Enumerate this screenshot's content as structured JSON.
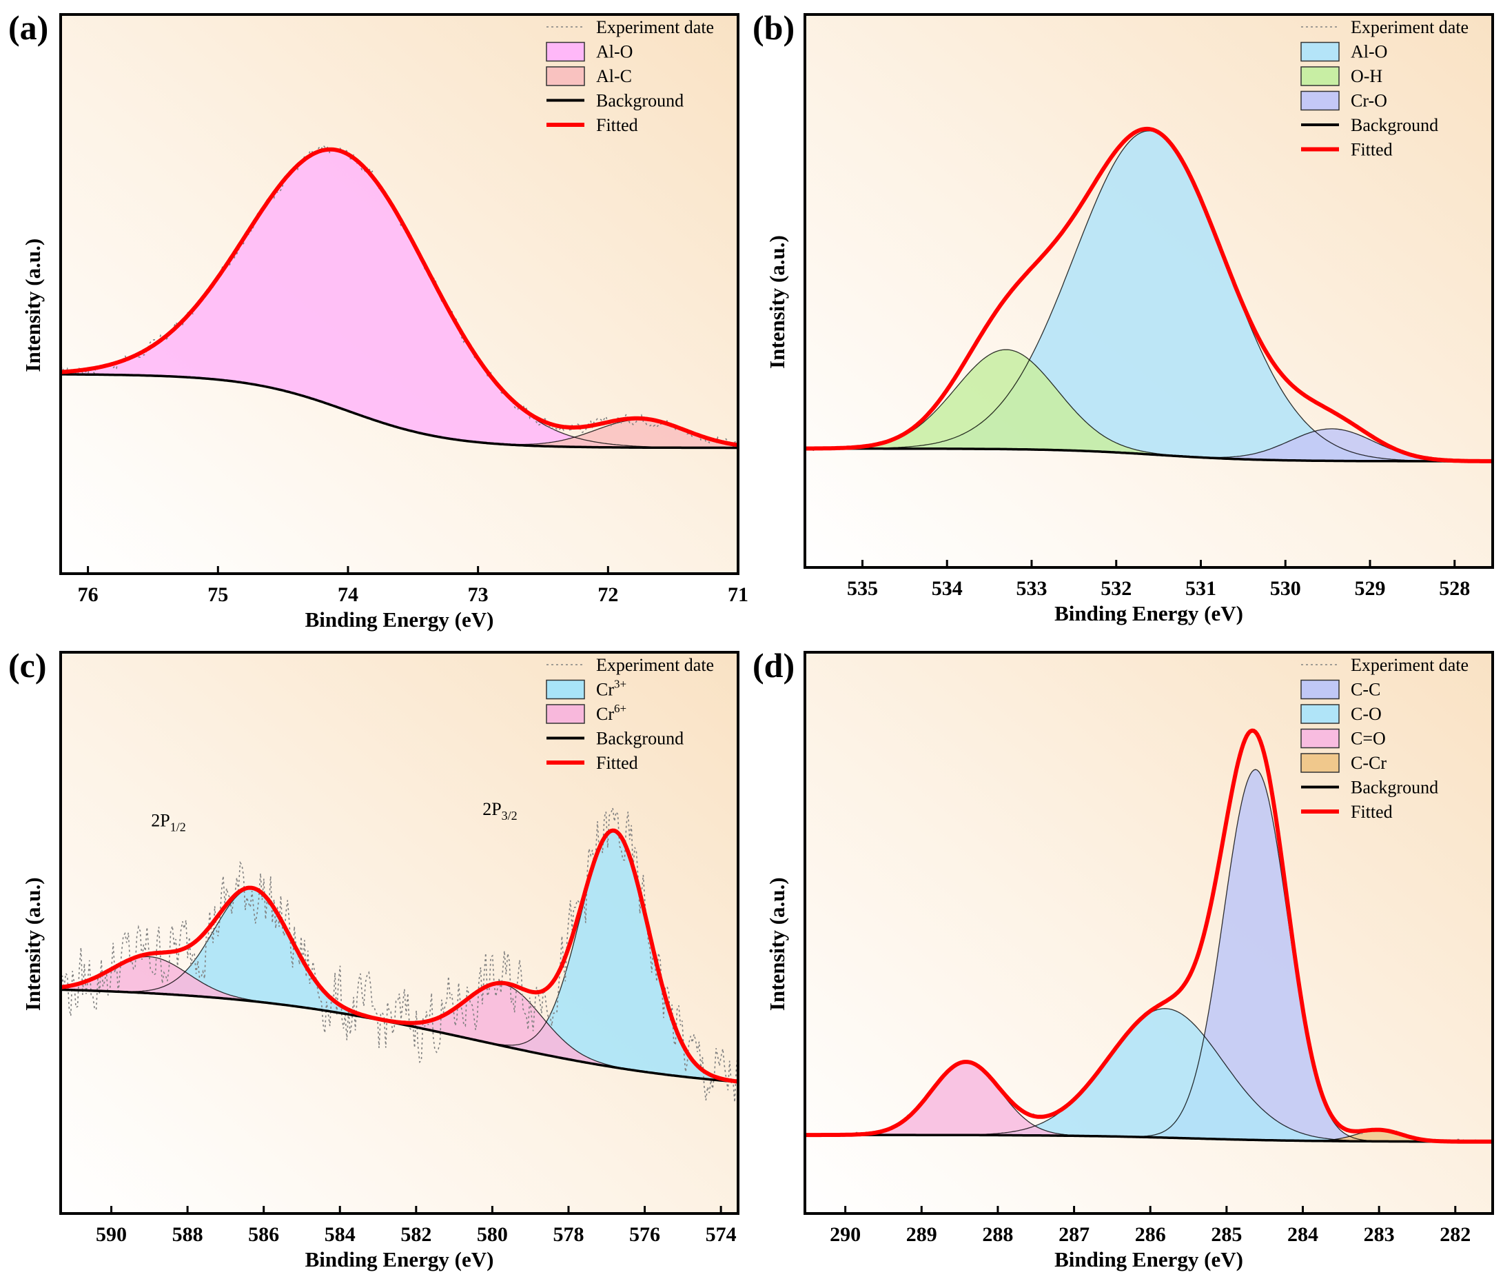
{
  "chart_data": [
    {
      "panel_label": "(a)",
      "type": "line",
      "xlabel": "Binding Energy (eV)",
      "ylabel": "Intensity (a.u.)",
      "xlim": [
        76.21,
        71
      ],
      "ylim": [
        0,
        100
      ],
      "xticks": [
        76,
        75,
        74,
        73,
        72,
        71
      ],
      "grid": false,
      "legend_position": "top-right",
      "legend": {
        "experiment": "Experiment date",
        "background": "Background",
        "fitted": "Fitted"
      },
      "background": {
        "left": 35.7,
        "right": 22.5,
        "center": 74.0,
        "width": 0.4
      },
      "noise": 0.8,
      "components": [
        {
          "name": "Al-O",
          "center": 74.05,
          "amplitude": 46,
          "sigma": 0.7,
          "color": "#ffb8f8"
        },
        {
          "name": "Al-C",
          "center": 71.75,
          "amplitude": 5,
          "sigma": 0.35,
          "color": "#f9c2c0"
        }
      ],
      "colors": {
        "fitted": "#ff0000",
        "background": "#000000",
        "experiment": "#808080"
      }
    },
    {
      "panel_label": "(b)",
      "type": "line",
      "xlabel": "Binding Energy (eV)",
      "ylabel": "Intensity (a.u.)",
      "xlim": [
        535.68,
        527.55
      ],
      "ylim": [
        0,
        100
      ],
      "xticks": [
        535,
        534,
        533,
        532,
        531,
        530,
        529,
        528
      ],
      "grid": false,
      "legend_position": "top-right",
      "legend": {
        "experiment": "Experiment date",
        "background": "Background",
        "fitted": "Fitted"
      },
      "background": {
        "left": 21.5,
        "right": 19.2,
        "center": 531.5,
        "width": 0.6
      },
      "noise": 0.3,
      "components": [
        {
          "name": "Al-O",
          "center": 531.6,
          "amplitude": 58.5,
          "sigma": 0.89,
          "color": "#b4e4f8"
        },
        {
          "name": "O-H",
          "center": 533.3,
          "amplitude": 18,
          "sigma": 0.6,
          "color": "#c8eea4"
        },
        {
          "name": "Cr-O",
          "center": 529.45,
          "amplitude": 5.8,
          "sigma": 0.5,
          "color": "#c4c8f6"
        }
      ],
      "colors": {
        "fitted": "#ff0000",
        "background": "#000000",
        "experiment": "#808080"
      }
    },
    {
      "panel_label": "(c)",
      "type": "line",
      "xlabel": "Binding Energy (eV)",
      "ylabel": "Intensity (a.u.)",
      "xlim": [
        591.33,
        573.55
      ],
      "ylim": [
        0,
        100
      ],
      "xticks": [
        590,
        588,
        586,
        584,
        582,
        580,
        578,
        576,
        574
      ],
      "grid": false,
      "legend_position": "top-right",
      "legend": {
        "experiment": "Experiment date",
        "background": "Background",
        "fitted": "Fitted"
      },
      "background": {
        "left": 40.5,
        "right": 21.5,
        "center": 580.5,
        "width": 3.2
      },
      "noise": 5.5,
      "components": [
        {
          "name": "Cr",
          "sup": "3+",
          "center": 576.8,
          "amplitude": 42,
          "sigma": 0.9,
          "color": "#a8e4f8"
        },
        {
          "name": "Cr",
          "sup": "6+",
          "center": 579.7,
          "amplitude": 11,
          "sigma": 1.0,
          "color": "#f8b8dc"
        },
        {
          "name": "Cr",
          "sup": "3+",
          "center": 586.3,
          "amplitude": 20,
          "sigma": 1.0,
          "color": "#a8e4f8",
          "legend": false
        },
        {
          "name": "Cr",
          "sup": "6+",
          "center": 589.0,
          "amplitude": 6.5,
          "sigma": 1.0,
          "color": "#f8b8dc",
          "legend": false
        }
      ],
      "annotations": [
        {
          "text": "2P",
          "sub": "1/2",
          "x": 588.5,
          "y": 69
        },
        {
          "text": "2P",
          "sub": "3/2",
          "x": 579.8,
          "y": 71
        }
      ],
      "colors": {
        "fitted": "#ff0000",
        "background": "#000000",
        "experiment": "#808080"
      }
    },
    {
      "panel_label": "(d)",
      "type": "line",
      "xlabel": "Binding Energy (eV)",
      "ylabel": "Intensity (a.u.)",
      "xlim": [
        290.53,
        281.51
      ],
      "ylim": [
        0,
        100
      ],
      "xticks": [
        290,
        289,
        288,
        287,
        286,
        285,
        284,
        283,
        282
      ],
      "grid": false,
      "legend_position": "top-right",
      "legend": {
        "experiment": "Experiment date",
        "background": "Background",
        "fitted": "Fitted"
      },
      "background": {
        "left": 14.0,
        "right": 12.8,
        "center": 285.5,
        "width": 0.8
      },
      "noise": 0.3,
      "components": [
        {
          "name": "C-C",
          "center": 284.62,
          "amplitude": 66,
          "sigma": 0.42,
          "color": "#c0c8f6"
        },
        {
          "name": "C-O",
          "center": 285.8,
          "amplitude": 23,
          "sigma": 0.75,
          "color": "#b0e4f8"
        },
        {
          "name": "C=O",
          "center": 288.42,
          "amplitude": 13,
          "sigma": 0.45,
          "color": "#f8bce0"
        },
        {
          "name": "C-Cr",
          "center": 283.0,
          "amplitude": 2,
          "sigma": 0.3,
          "color": "#f0c88c"
        }
      ],
      "colors": {
        "fitted": "#ff0000",
        "background": "#000000",
        "experiment": "#808080"
      }
    }
  ]
}
